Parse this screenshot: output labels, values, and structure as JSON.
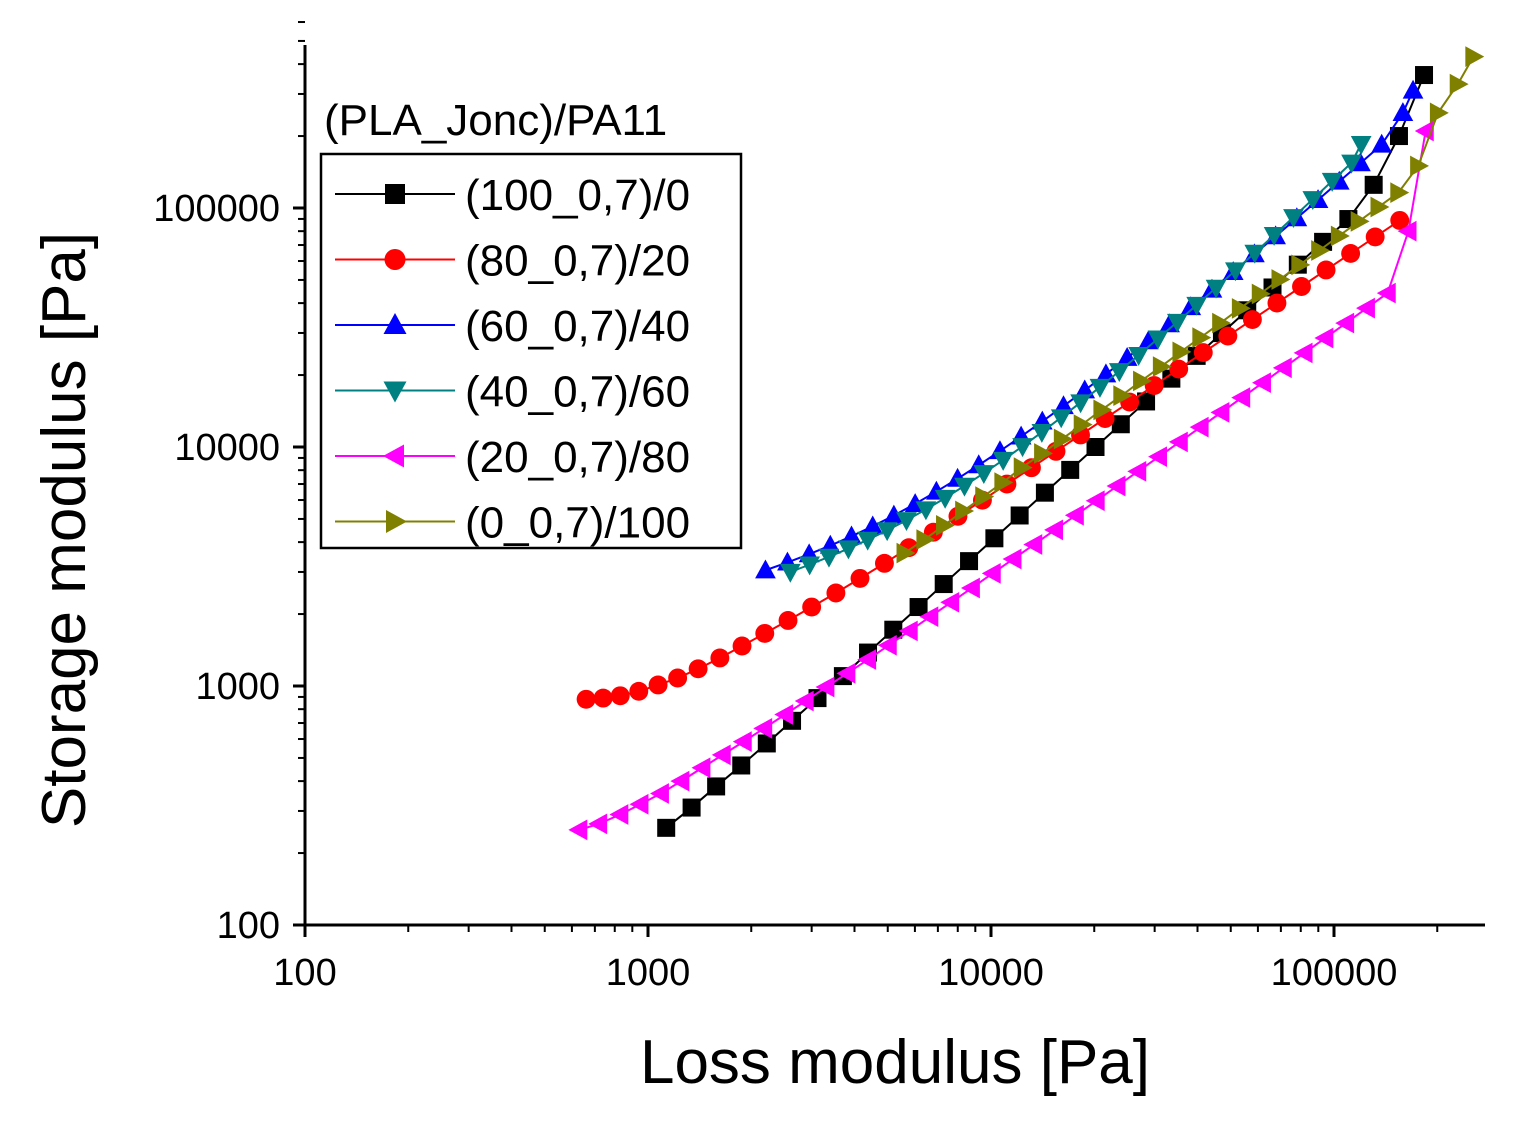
{
  "chart_data": {
    "type": "scatter",
    "title": "",
    "xlabel": "Loss modulus [Pa]",
    "ylabel": "Storage modulus [Pa]",
    "xscale": "log",
    "yscale": "log",
    "xlim": [
      100,
      280000
    ],
    "ylim": [
      100,
      600000
    ],
    "xticks": [
      {
        "value": 100,
        "label": "100"
      },
      {
        "value": 1000,
        "label": "1000"
      },
      {
        "value": 10000,
        "label": "10000"
      },
      {
        "value": 100000,
        "label": "100000"
      }
    ],
    "yticks": [
      {
        "value": 100,
        "label": "100"
      },
      {
        "value": 1000,
        "label": "1000"
      },
      {
        "value": 10000,
        "label": "10000"
      },
      {
        "value": 100000,
        "label": "100000"
      }
    ],
    "legend_title": "(PLA_Jonc)/PA11",
    "legend_position": "top-left",
    "series": [
      {
        "name": "(100_0,7)/0",
        "color": "#000000",
        "marker": "square",
        "x": [
          1130,
          1340,
          1580,
          1870,
          2220,
          2630,
          3120,
          3700,
          4380,
          5190,
          6150,
          7280,
          8630,
          10230,
          12120,
          14360,
          17020,
          20170,
          23900,
          28320,
          33560,
          39770,
          47130,
          55850,
          66180,
          78430,
          92940,
          110140,
          130520,
          154670,
          183000
        ],
        "y": [
          255,
          310,
          380,
          465,
          575,
          715,
          890,
          1100,
          1380,
          1720,
          2140,
          2670,
          3330,
          4150,
          5170,
          6440,
          8020,
          10000,
          12450,
          15510,
          19320,
          24060,
          29970,
          37330,
          46500,
          57930,
          72170,
          89900,
          125000,
          200000,
          360000
        ]
      },
      {
        "name": "(80_0,7)/20",
        "color": "#ff0000",
        "marker": "circle",
        "x": [
          660,
          740,
          830,
          940,
          1070,
          1220,
          1400,
          1620,
          1880,
          2190,
          2560,
          3000,
          3530,
          4150,
          4890,
          5760,
          6790,
          8010,
          9440,
          11130,
          13120,
          15470,
          18240,
          21510,
          25360,
          29900,
          35260,
          41580,
          49030,
          57820,
          68180,
          80400,
          94810,
          111800,
          131840,
          155470
        ],
        "y": [
          880,
          890,
          910,
          950,
          1010,
          1080,
          1180,
          1310,
          1470,
          1660,
          1880,
          2140,
          2450,
          2820,
          3260,
          3790,
          4400,
          5130,
          5990,
          7000,
          8190,
          9590,
          11230,
          13160,
          15420,
          18080,
          21190,
          24840,
          29120,
          34140,
          40030,
          46940,
          55040,
          64540,
          75680,
          88740
        ]
      },
      {
        "name": "(60_0,7)/40",
        "color": "#0000ff",
        "marker": "triangle-up",
        "x": [
          2200,
          2550,
          2950,
          3400,
          3920,
          4520,
          5210,
          6010,
          6930,
          7990,
          9210,
          10620,
          12240,
          14110,
          16270,
          18760,
          21630,
          24940,
          28760,
          33160,
          38230,
          44080,
          50830,
          58610,
          67580,
          77920,
          89840,
          103590,
          119440,
          137720,
          158790,
          170000
        ],
        "y": [
          3050,
          3290,
          3560,
          3870,
          4230,
          4660,
          5170,
          5780,
          6510,
          7370,
          8400,
          9620,
          11070,
          12790,
          14840,
          17270,
          20160,
          23610,
          27730,
          32650,
          38530,
          45570,
          54000,
          64100,
          76210,
          90730,
          108150,
          129040,
          154120,
          184240,
          250000,
          310000
        ]
      },
      {
        "name": "(40_0,7)/60",
        "color": "#008080",
        "marker": "triangle-down",
        "x": [
          2600,
          2960,
          3370,
          3840,
          4370,
          4980,
          5670,
          6460,
          7350,
          8370,
          9530,
          10850,
          12360,
          14070,
          16020,
          18250,
          20780,
          23660,
          26940,
          30680,
          34930,
          39780,
          45300,
          51580,
          58740,
          66890,
          76170,
          86740,
          98770,
          112480,
          120000
        ],
        "y": [
          3000,
          3220,
          3470,
          3760,
          4090,
          4480,
          4940,
          5480,
          6120,
          6880,
          7770,
          8820,
          10070,
          11540,
          13290,
          15360,
          17820,
          20750,
          24240,
          28400,
          33360,
          39280,
          46350,
          54800,
          64910,
          77010,
          91500,
          108860,
          129670,
          154620,
          185000
        ]
      },
      {
        "name": "(20_0,7)/80",
        "color": "#ff00ff",
        "marker": "triangle-left",
        "x": [
          630,
          720,
          830,
          950,
          1090,
          1250,
          1440,
          1650,
          1900,
          2180,
          2510,
          2880,
          3310,
          3810,
          4380,
          5030,
          5790,
          6650,
          7650,
          8790,
          10110,
          11620,
          13360,
          15360,
          17660,
          20310,
          23350,
          26850,
          30870,
          35490,
          40810,
          46920,
          53950,
          62030,
          71320,
          82000,
          94290,
          108410,
          124650,
          143320,
          164790,
          185000
        ],
        "y": [
          250,
          265,
          290,
          320,
          355,
          400,
          455,
          515,
          585,
          665,
          760,
          865,
          990,
          1130,
          1290,
          1480,
          1700,
          1950,
          2240,
          2570,
          2960,
          3400,
          3910,
          4500,
          5180,
          5960,
          6870,
          7910,
          9110,
          10500,
          12110,
          13960,
          16100,
          18580,
          21440,
          24750,
          28580,
          33000,
          38120,
          44060,
          80000,
          210000
        ]
      },
      {
        "name": "(0_0,7)/100",
        "color": "#808000",
        "marker": "triangle-right",
        "x": [
          5600,
          6400,
          7300,
          8300,
          9500,
          10800,
          12300,
          14100,
          16100,
          18400,
          21000,
          24000,
          27400,
          31300,
          35700,
          40800,
          46600,
          53200,
          60800,
          69400,
          79300,
          90600,
          103400,
          118100,
          134900,
          154100,
          176000,
          201000,
          229600,
          255000
        ],
        "y": [
          3600,
          4100,
          4700,
          5400,
          6200,
          7100,
          8200,
          9400,
          10800,
          12400,
          14300,
          16400,
          18900,
          21700,
          25000,
          28700,
          33000,
          38000,
          43700,
          50200,
          57800,
          66400,
          76400,
          87900,
          101000,
          116000,
          150000,
          250000,
          330000,
          430000
        ]
      }
    ]
  }
}
